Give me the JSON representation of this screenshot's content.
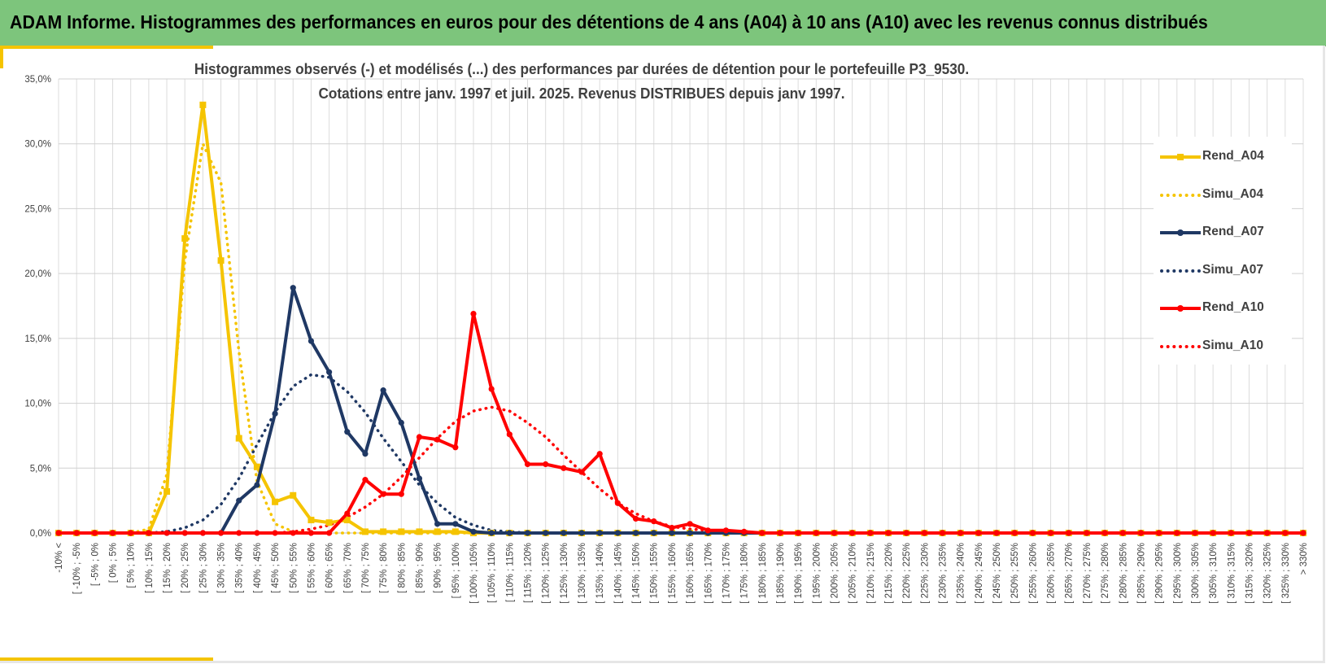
{
  "header": {
    "title": "ADAM Informe. Histogrammes des performances en euros pour des détentions de 4 ans (A04) à 10 ans (A10) avec les revenus connus distribués"
  },
  "chart_data": {
    "type": "line",
    "title_line1": "Histogrammes observés (-) et modélisés (...) des performances par durées de détention pour  le portefeuille P3_9530.",
    "title_line2": "Cotations entre janv. 1997 et juil. 2025. Revenus DISTRIBUES depuis janv 1997.",
    "ylim": [
      0,
      35
    ],
    "yticks": [
      "0,0%",
      "5,0%",
      "10,0%",
      "15,0%",
      "20,0%",
      "25,0%",
      "30,0%",
      "35,0%"
    ],
    "grid": true,
    "legend_position": "right",
    "categories": [
      "-10% <",
      "[ -10% ; -5%",
      "[ -5% ; 0%",
      "[ 0% ; 5%",
      "[ 5% ; 10%",
      "[ 10% ; 15%",
      "[ 15% ; 20%",
      "[ 20% ; 25%",
      "[ 25% ; 30%",
      "[ 30% ; 35%",
      "[ 35% ; 40%",
      "[ 40% ; 45%",
      "[ 45% ; 50%",
      "[ 50% ; 55%",
      "[ 55% ; 60%",
      "[ 60% ; 65%",
      "[ 65% ; 70%",
      "[ 70% ; 75%",
      "[ 75% ; 80%",
      "[ 80% ; 85%",
      "[ 85% ; 90%",
      "[ 90% ; 95%",
      "[ 95% ; 100%",
      "[ 100% ; 105%",
      "[ 105% ; 110%",
      "[ 110% ; 115%",
      "[ 115% ; 120%",
      "[ 120% ; 125%",
      "[ 125% ; 130%",
      "[ 130% ; 135%",
      "[ 135% ; 140%",
      "[ 140% ; 145%",
      "[ 145% ; 150%",
      "[ 150% ; 155%",
      "[ 155% ; 160%",
      "[ 160% ; 165%",
      "[ 165% ; 170%",
      "[ 170% ; 175%",
      "[ 175% ; 180%",
      "[ 180% ; 185%",
      "[ 185% ; 190%",
      "[ 190% ; 195%",
      "[ 195% ; 200%",
      "[ 200% ; 205%",
      "[ 205% ; 210%",
      "[ 210% ; 215%",
      "[ 215% ; 220%",
      "[ 220% ; 225%",
      "[ 225% ; 230%",
      "[ 230% ; 235%",
      "[ 235% ; 240%",
      "[ 240% ; 245%",
      "[ 245% ; 250%",
      "[ 250% ; 255%",
      "[ 255% ; 260%",
      "[ 260% ; 265%",
      "[ 265% ; 270%",
      "[ 270% ; 275%",
      "[ 275% ; 280%",
      "[ 280% ; 285%",
      "[ 285% ; 290%",
      "[ 290% ; 295%",
      "[ 295% ; 300%",
      "[ 300% ; 305%",
      "[ 305% ; 310%",
      "[ 310% ; 315%",
      "[ 315% ; 320%",
      "[ 320% ; 325%",
      "[ 325% ; 330%",
      "> 330%"
    ],
    "series": [
      {
        "name": "Rend_A04",
        "style": "solid",
        "marker": "square",
        "color": "#f5c400",
        "values": [
          0,
          0,
          0,
          0,
          0,
          0,
          3.2,
          22.7,
          33.0,
          21.0,
          7.3,
          5.1,
          2.4,
          2.9,
          1.0,
          0.8,
          1.0,
          0.1,
          0.1,
          0.1,
          0.1,
          0.1,
          0.1,
          0,
          0,
          0,
          0,
          0,
          0,
          0,
          0,
          0,
          0,
          0,
          0,
          0,
          0,
          0,
          0,
          0,
          0,
          0,
          0,
          0,
          0,
          0,
          0,
          0,
          0,
          0,
          0,
          0,
          0,
          0,
          0,
          0,
          0,
          0,
          0,
          0,
          0,
          0,
          0,
          0,
          0,
          0,
          0,
          0,
          0,
          0
        ]
      },
      {
        "name": "Simu_A04",
        "style": "dotted",
        "marker": "none",
        "color": "#f5c400",
        "values": [
          0,
          0,
          0,
          0,
          0,
          0.3,
          4.5,
          21.0,
          30.0,
          27.0,
          14.0,
          4.0,
          0.7,
          0.1,
          0,
          0,
          0,
          0,
          0,
          0,
          0,
          0,
          0,
          0,
          0,
          0,
          0,
          0,
          0,
          0,
          0,
          0,
          0,
          0,
          0,
          0,
          0,
          0,
          0,
          0,
          0,
          0,
          0,
          0,
          0,
          0,
          0,
          0,
          0,
          0,
          0,
          0,
          0,
          0,
          0,
          0,
          0,
          0,
          0,
          0,
          0,
          0,
          0,
          0,
          0,
          0,
          0,
          0,
          0,
          0
        ]
      },
      {
        "name": "Rend_A07",
        "style": "solid",
        "marker": "circle",
        "color": "#1f3864",
        "values": [
          0,
          0,
          0,
          0,
          0,
          0,
          0,
          0,
          0,
          0,
          2.5,
          3.7,
          9.2,
          18.9,
          14.8,
          12.4,
          7.8,
          6.1,
          11.0,
          8.5,
          4.2,
          0.7,
          0.7,
          0.1,
          0,
          0,
          0,
          0,
          0,
          0,
          0,
          0,
          0,
          0,
          0,
          0,
          0,
          0,
          0,
          0,
          0,
          0,
          0,
          0,
          0,
          0,
          0,
          0,
          0,
          0,
          0,
          0,
          0,
          0,
          0,
          0,
          0,
          0,
          0,
          0,
          0,
          0,
          0,
          0,
          0,
          0,
          0,
          0,
          0,
          0
        ]
      },
      {
        "name": "Simu_A07",
        "style": "dotted",
        "marker": "none",
        "color": "#1f3864",
        "values": [
          0,
          0,
          0,
          0,
          0,
          0,
          0.1,
          0.4,
          1.0,
          2.2,
          4.2,
          6.8,
          9.3,
          11.3,
          12.2,
          12.0,
          10.9,
          9.3,
          7.3,
          5.5,
          3.7,
          2.3,
          1.2,
          0.6,
          0.2,
          0.1,
          0,
          0,
          0,
          0,
          0,
          0,
          0,
          0,
          0,
          0,
          0,
          0,
          0,
          0,
          0,
          0,
          0,
          0,
          0,
          0,
          0,
          0,
          0,
          0,
          0,
          0,
          0,
          0,
          0,
          0,
          0,
          0,
          0,
          0,
          0,
          0,
          0,
          0,
          0,
          0,
          0,
          0,
          0,
          0
        ]
      },
      {
        "name": "Rend_A10",
        "style": "solid",
        "marker": "circle",
        "color": "#ff0000",
        "values": [
          0,
          0,
          0,
          0,
          0,
          0,
          0,
          0,
          0,
          0,
          0,
          0,
          0,
          0,
          0,
          0,
          1.5,
          4.1,
          3.0,
          3.0,
          7.4,
          7.2,
          6.6,
          16.9,
          11.1,
          7.6,
          5.3,
          5.3,
          5.0,
          4.7,
          6.1,
          2.3,
          1.1,
          0.9,
          0.4,
          0.7,
          0.2,
          0.2,
          0.1,
          0,
          0,
          0,
          0,
          0,
          0,
          0,
          0,
          0,
          0,
          0,
          0,
          0,
          0,
          0,
          0,
          0,
          0,
          0,
          0,
          0,
          0,
          0,
          0,
          0,
          0,
          0,
          0,
          0,
          0,
          0
        ]
      },
      {
        "name": "Simu_A10",
        "style": "dotted",
        "marker": "none",
        "color": "#ff0000",
        "values": [
          0,
          0,
          0,
          0,
          0,
          0,
          0,
          0,
          0,
          0,
          0,
          0,
          0,
          0.1,
          0.3,
          0.6,
          1.2,
          2.0,
          3.0,
          4.3,
          5.8,
          7.3,
          8.6,
          9.4,
          9.7,
          9.4,
          8.5,
          7.4,
          6.0,
          4.7,
          3.4,
          2.3,
          1.5,
          0.9,
          0.5,
          0.3,
          0.2,
          0.1,
          0,
          0,
          0,
          0,
          0,
          0,
          0,
          0,
          0,
          0,
          0,
          0,
          0,
          0,
          0,
          0,
          0,
          0,
          0,
          0,
          0,
          0,
          0,
          0,
          0,
          0,
          0,
          0,
          0,
          0,
          0,
          0
        ]
      }
    ]
  }
}
